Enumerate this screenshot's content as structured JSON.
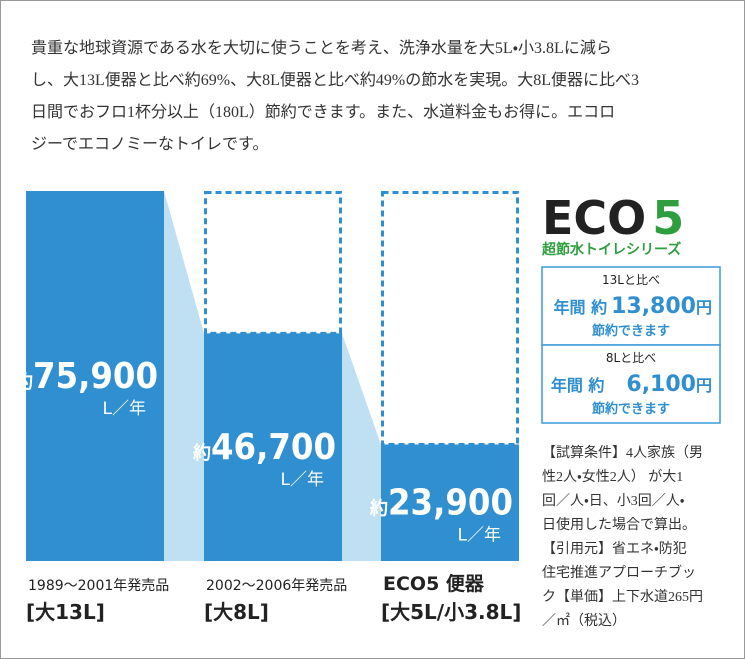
{
  "intro_lines": [
    "貴重な地球資源である水を大切に使うことを考え、洗浄水量を大5L・小3.8Lに減ら",
    "し、大13L便器と比べ約69%、大8L便器と比べ約49%の節水を実現。大8L便器に比べ3",
    "日間でおフロ1杯分以上（180L）節約できます。また、水道料金もお得に。エコロ",
    "ジーでエコノミーなトイレです。"
  ],
  "chart_data": {
    "type": "bar",
    "categories": [
      "[大13L]",
      "[大8L]",
      "[大5L/小3.8L]"
    ],
    "category_notes": [
      "1989～2001年発売品",
      "2002～2006年発売品",
      "ECO5 便器"
    ],
    "values": [
      75900,
      46700,
      23900
    ],
    "value_labels": [
      "75,900",
      "46,700",
      "23,900"
    ],
    "value_prefix": "約",
    "value_unit": "L／年",
    "color": "#2f8fd0",
    "ylim": [
      0,
      75900
    ]
  },
  "logo": {
    "word": "ECO",
    "digit": "5",
    "tagline": "超節水トイレシリーズ"
  },
  "savings": [
    {
      "compare": "13Lと比べ",
      "prefix": "年間 約",
      "amount": "13,800",
      "unit": "円",
      "note": "節約できます"
    },
    {
      "compare": "8Lと比べ",
      "prefix": "年間 約",
      "amount": "6,100",
      "unit": "円",
      "note": "節約できます"
    }
  ],
  "conditions_lines": [
    "【試算条件】4人家族（男",
    "性2人・女性2人） が大1",
    "回／人・日、小3回／人・",
    "日使用した場合で算出。",
    "【引用元】省エネ・防犯",
    "住宅推進アプローチブッ",
    "ク【単価】上下水道265円",
    "／㎡（税込）"
  ]
}
